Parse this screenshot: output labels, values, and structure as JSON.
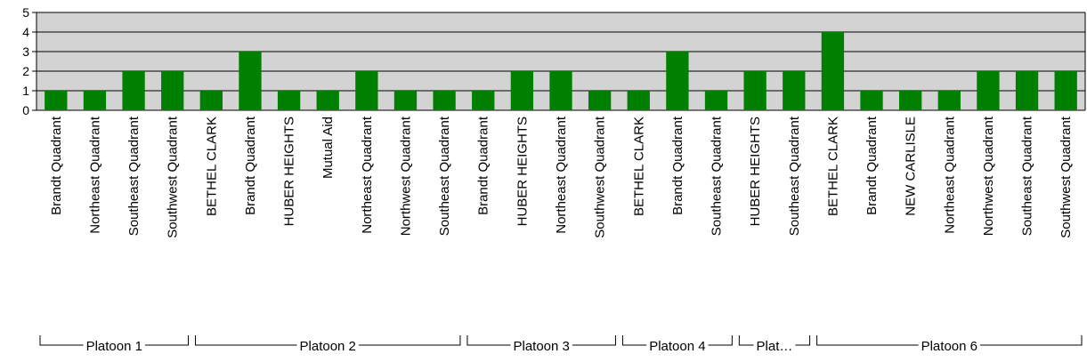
{
  "chart_data": {
    "type": "bar",
    "title": "",
    "xlabel": "",
    "ylabel": "",
    "ylim": [
      0,
      5
    ],
    "yticks": [
      "0",
      "1",
      "2",
      "3",
      "4",
      "5"
    ],
    "grid": true,
    "legend": "none",
    "colors": {
      "bar": "#008000",
      "plot_bg": "#d3d3d3",
      "grid": "#000000"
    },
    "categories": [
      "Brandt  Quadrant",
      "Northeast Quadrant",
      "Southeast Quadrant",
      "Southwest Quadrant",
      "BETHEL CLARK",
      "Brandt  Quadrant",
      "HUBER HEIGHTS",
      "Mutual Aid",
      "Northeast Quadrant",
      "Northwest Quadrant",
      "Southeast Quadrant",
      "Brandt  Quadrant",
      "HUBER HEIGHTS",
      "Northeast Quadrant",
      "Southwest Quadrant",
      "BETHEL CLARK",
      "Brandt  Quadrant",
      "Southeast Quadrant",
      "HUBER HEIGHTS",
      "Southeast Quadrant",
      "BETHEL CLARK",
      "Brandt  Quadrant",
      "NEW CARLISLE",
      "Northeast Quadrant",
      "Northwest Quadrant",
      "Southeast Quadrant",
      "Southwest Quadrant"
    ],
    "values": [
      1,
      1,
      2,
      2,
      1,
      3,
      1,
      1,
      2,
      1,
      1,
      1,
      2,
      2,
      1,
      1,
      3,
      1,
      2,
      2,
      4,
      1,
      1,
      1,
      2,
      2,
      2
    ],
    "groups": [
      {
        "label": "Platoon 1",
        "start": 0,
        "end": 3
      },
      {
        "label": "Platoon 2",
        "start": 4,
        "end": 10
      },
      {
        "label": "Platoon 3",
        "start": 11,
        "end": 14
      },
      {
        "label": "Platoon 4",
        "start": 15,
        "end": 17
      },
      {
        "label": "Plat…",
        "start": 18,
        "end": 19
      },
      {
        "label": "Platoon 6",
        "start": 20,
        "end": 26
      }
    ]
  }
}
